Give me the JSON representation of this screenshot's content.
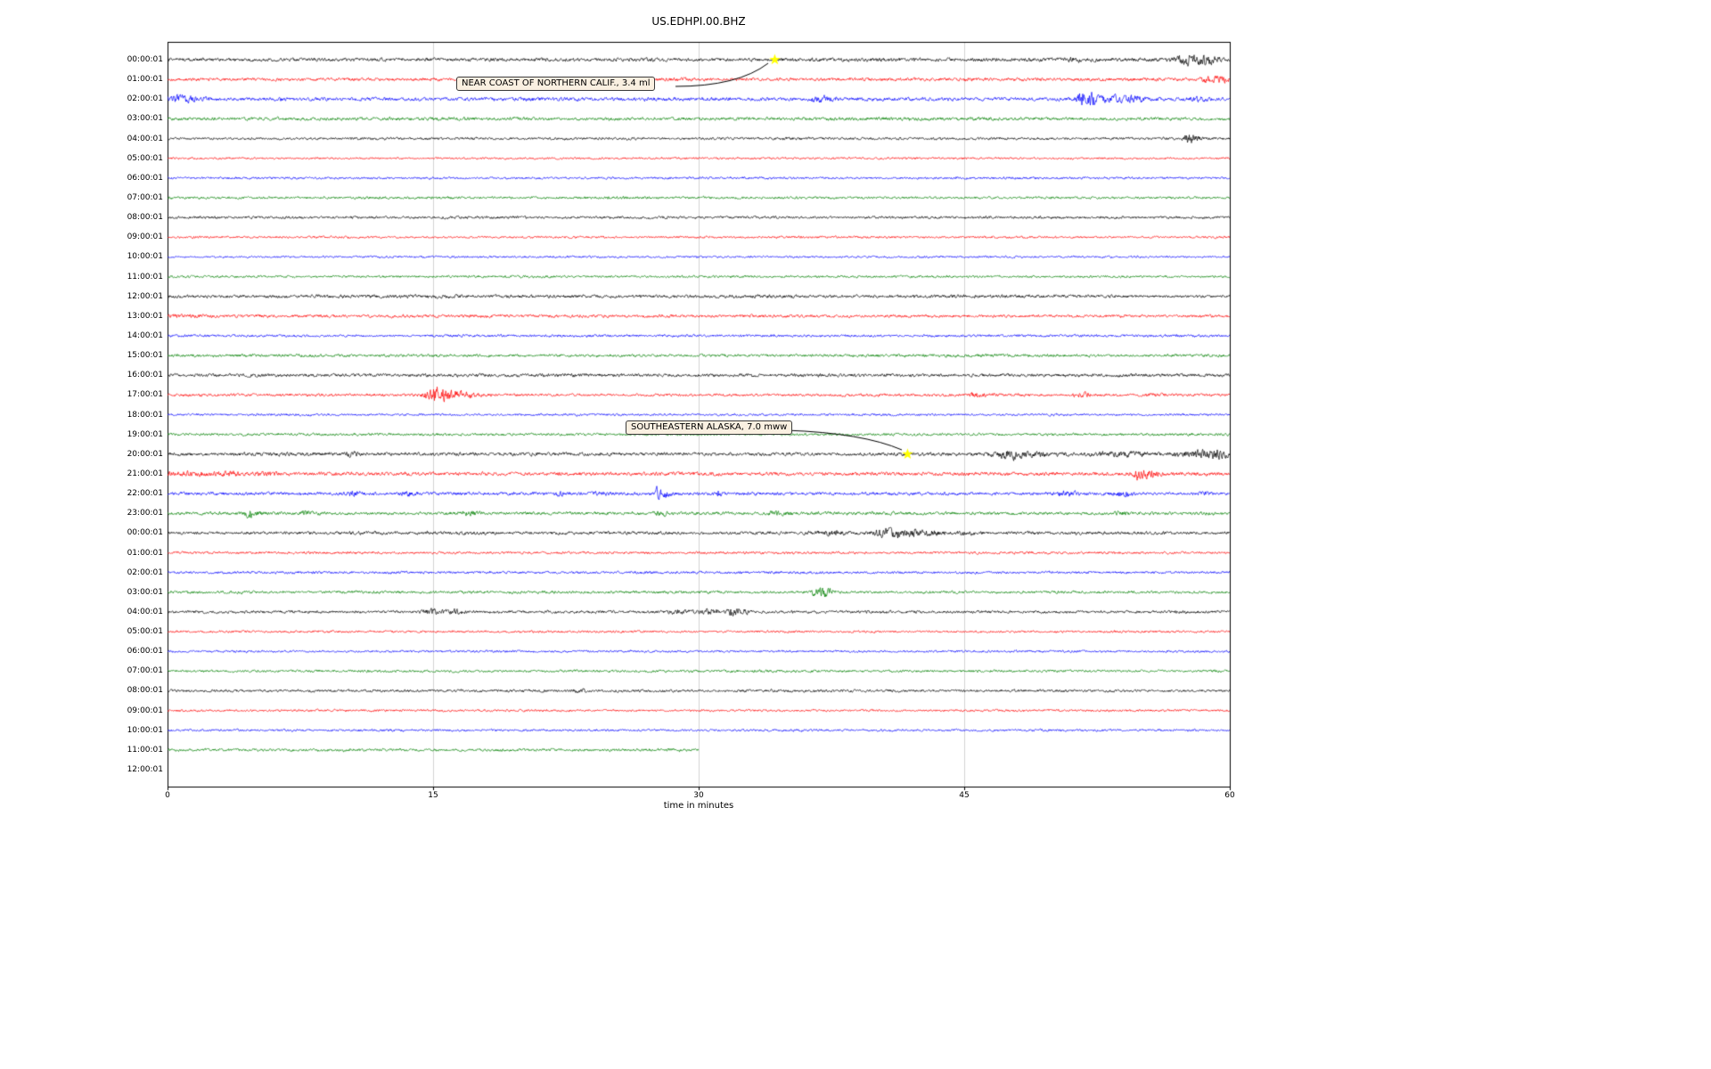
{
  "figure": {
    "title": "US.EDHPI.00.BHZ",
    "xlabel": "time in minutes"
  },
  "chart_data": {
    "type": "line",
    "subtype": "helicorder-seismogram-drumplot",
    "title": "US.EDHPI.00.BHZ",
    "xlabel": "time in minutes",
    "ylabel": "",
    "xlim": [
      0,
      60
    ],
    "xticks": [
      "0",
      "15",
      "30",
      "45",
      "60"
    ],
    "xtick_values": [
      0,
      15,
      30,
      45,
      60
    ],
    "grid": {
      "vertical": true,
      "horizontal": false,
      "color": "#c8c8c8"
    },
    "background_color": "#ffffff",
    "border_color": "#000000",
    "trace_color_cycle": [
      "#000000",
      "#ff0000",
      "#0000ff",
      "#008000"
    ],
    "marker": {
      "shape": "star",
      "color": "#ffff00"
    },
    "legend_position": "none",
    "rows": [
      {
        "label": "00:00:01",
        "color": "#000000",
        "amp": 2.4
      },
      {
        "label": "01:00:01",
        "color": "#ff0000",
        "amp": 2.2
      },
      {
        "label": "02:00:01",
        "color": "#0000ff",
        "amp": 2.4
      },
      {
        "label": "03:00:01",
        "color": "#008000",
        "amp": 2.2
      },
      {
        "label": "04:00:01",
        "color": "#000000",
        "amp": 1.7
      },
      {
        "label": "05:00:01",
        "color": "#ff0000",
        "amp": 1.4
      },
      {
        "label": "06:00:01",
        "color": "#0000ff",
        "amp": 1.5
      },
      {
        "label": "07:00:01",
        "color": "#008000",
        "amp": 1.7
      },
      {
        "label": "08:00:01",
        "color": "#000000",
        "amp": 1.8
      },
      {
        "label": "09:00:01",
        "color": "#ff0000",
        "amp": 1.5
      },
      {
        "label": "10:00:01",
        "color": "#0000ff",
        "amp": 1.4
      },
      {
        "label": "11:00:01",
        "color": "#008000",
        "amp": 1.6
      },
      {
        "label": "12:00:01",
        "color": "#000000",
        "amp": 2.2
      },
      {
        "label": "13:00:01",
        "color": "#ff0000",
        "amp": 2.0
      },
      {
        "label": "14:00:01",
        "color": "#0000ff",
        "amp": 1.7
      },
      {
        "label": "15:00:01",
        "color": "#008000",
        "amp": 2.0
      },
      {
        "label": "16:00:01",
        "color": "#000000",
        "amp": 2.2
      },
      {
        "label": "17:00:01",
        "color": "#ff0000",
        "amp": 1.9
      },
      {
        "label": "18:00:01",
        "color": "#0000ff",
        "amp": 1.5
      },
      {
        "label": "19:00:01",
        "color": "#008000",
        "amp": 1.8
      },
      {
        "label": "20:00:01",
        "color": "#000000",
        "amp": 2.3
      },
      {
        "label": "21:00:01",
        "color": "#ff0000",
        "amp": 2.4
      },
      {
        "label": "22:00:01",
        "color": "#0000ff",
        "amp": 2.2
      },
      {
        "label": "23:00:01",
        "color": "#008000",
        "amp": 2.2
      },
      {
        "label": "00:00:01",
        "color": "#000000",
        "amp": 2.1
      },
      {
        "label": "01:00:01",
        "color": "#ff0000",
        "amp": 1.7
      },
      {
        "label": "02:00:01",
        "color": "#0000ff",
        "amp": 1.7
      },
      {
        "label": "03:00:01",
        "color": "#008000",
        "amp": 1.8
      },
      {
        "label": "04:00:01",
        "color": "#000000",
        "amp": 1.9
      },
      {
        "label": "05:00:01",
        "color": "#ff0000",
        "amp": 1.5
      },
      {
        "label": "06:00:01",
        "color": "#0000ff",
        "amp": 1.5
      },
      {
        "label": "07:00:01",
        "color": "#008000",
        "amp": 1.7
      },
      {
        "label": "08:00:01",
        "color": "#000000",
        "amp": 1.8
      },
      {
        "label": "09:00:01",
        "color": "#ff0000",
        "amp": 1.5
      },
      {
        "label": "10:00:01",
        "color": "#0000ff",
        "amp": 1.5
      },
      {
        "label": "11:00:01",
        "color": "#008000",
        "amp": 1.8
      },
      {
        "label": "12:00:01",
        "color": "#000000",
        "amp": 0
      }
    ],
    "bursts": [
      [
        0,
        34.4,
        1.5,
        0.2
      ],
      [
        0,
        51.3,
        2,
        0.25
      ],
      [
        0,
        57.6,
        6,
        0.5
      ],
      [
        0,
        58.7,
        5,
        0.45
      ],
      [
        1,
        58.7,
        3,
        0.25
      ],
      [
        1,
        59.4,
        5,
        0.35
      ],
      [
        2,
        0.7,
        3,
        0.7
      ],
      [
        2,
        1.8,
        2,
        0.4
      ],
      [
        2,
        36.9,
        2.5,
        0.45
      ],
      [
        2,
        37.6,
        1.5,
        0.3
      ],
      [
        2,
        51.6,
        12,
        0.12
      ],
      [
        2,
        52.2,
        6,
        0.2
      ],
      [
        2,
        53.2,
        3.5,
        0.8
      ],
      [
        2,
        54.6,
        2.5,
        0.5
      ],
      [
        2,
        58.2,
        2.5,
        0.35
      ],
      [
        4,
        57.7,
        6,
        0.15
      ],
      [
        4,
        57.9,
        3,
        0.3
      ],
      [
        13,
        1.0,
        1.0,
        1.0
      ],
      [
        17,
        14.6,
        2,
        0.3
      ],
      [
        17,
        15.2,
        8,
        0.25
      ],
      [
        17,
        15.7,
        5,
        0.5
      ],
      [
        17,
        16.8,
        3,
        0.6
      ],
      [
        17,
        45.7,
        2,
        0.4
      ],
      [
        17,
        51.7,
        2,
        0.4
      ],
      [
        17,
        55.8,
        1.5,
        0.3
      ],
      [
        20,
        10.4,
        2.5,
        0.25
      ],
      [
        20,
        47.4,
        4,
        0.5
      ],
      [
        20,
        48.3,
        3,
        0.7
      ],
      [
        20,
        50.0,
        1.5,
        0.5
      ],
      [
        20,
        53.8,
        2.5,
        1.2
      ],
      [
        20,
        58.3,
        3.5,
        0.8
      ],
      [
        20,
        59.3,
        3,
        0.4
      ],
      [
        21,
        1.5,
        1.5,
        1.5
      ],
      [
        21,
        3.6,
        2,
        0.3
      ],
      [
        21,
        5.6,
        2,
        0.4
      ],
      [
        21,
        54.9,
        9,
        0.15
      ],
      [
        21,
        55.4,
        4,
        0.5
      ],
      [
        22,
        10.5,
        3,
        0.25
      ],
      [
        22,
        13.7,
        2.5,
        0.25
      ],
      [
        22,
        22.1,
        2.5,
        0.2
      ],
      [
        22,
        24.6,
        1.5,
        0.3
      ],
      [
        22,
        27.7,
        8,
        0.1
      ],
      [
        22,
        28.1,
        3,
        0.3
      ],
      [
        22,
        31.1,
        5,
        0.1
      ],
      [
        22,
        50.8,
        2.5,
        0.5
      ],
      [
        22,
        54.0,
        2.5,
        0.4
      ],
      [
        22,
        58.6,
        1.5,
        0.3
      ],
      [
        23,
        4.6,
        5,
        0.15
      ],
      [
        23,
        5.0,
        2,
        0.3
      ],
      [
        23,
        7.9,
        1.5,
        0.3
      ],
      [
        23,
        17.1,
        2.5,
        0.3
      ],
      [
        23,
        27.9,
        2.5,
        0.25
      ],
      [
        23,
        34.4,
        2,
        0.3
      ],
      [
        23,
        53.9,
        1.5,
        0.3
      ],
      [
        24,
        37.6,
        2.5,
        0.7
      ],
      [
        24,
        40.4,
        4,
        0.5
      ],
      [
        24,
        41.6,
        3.5,
        0.7
      ],
      [
        24,
        42.9,
        2.5,
        0.8
      ],
      [
        24,
        45.2,
        1.5,
        0.4
      ],
      [
        27,
        36.8,
        4,
        0.4
      ],
      [
        27,
        37.3,
        3,
        0.25
      ],
      [
        28,
        14.9,
        3,
        0.35
      ],
      [
        28,
        16.1,
        2.5,
        0.45
      ],
      [
        28,
        28.9,
        2,
        0.5
      ],
      [
        28,
        30.7,
        2.5,
        0.5
      ],
      [
        28,
        31.9,
        6,
        0.15
      ],
      [
        28,
        32.4,
        3,
        0.3
      ],
      [
        32,
        23.3,
        1.5,
        0.3
      ]
    ],
    "partial_rows": [
      [
        35,
        0,
        30
      ]
    ],
    "blank_rows": [
      36
    ],
    "annotations": [
      {
        "text": "NEAR COAST OF NORTHERN CALIF., 3.4 ml",
        "row": 0,
        "x_minutes": 34.3,
        "marker": "star",
        "marker_color": "#ffff00"
      },
      {
        "text": "SOUTHEASTERN ALASKA, 7.0 mww",
        "row": 20,
        "x_minutes": 41.8,
        "marker": "star",
        "marker_color": "#ffff00"
      }
    ]
  }
}
